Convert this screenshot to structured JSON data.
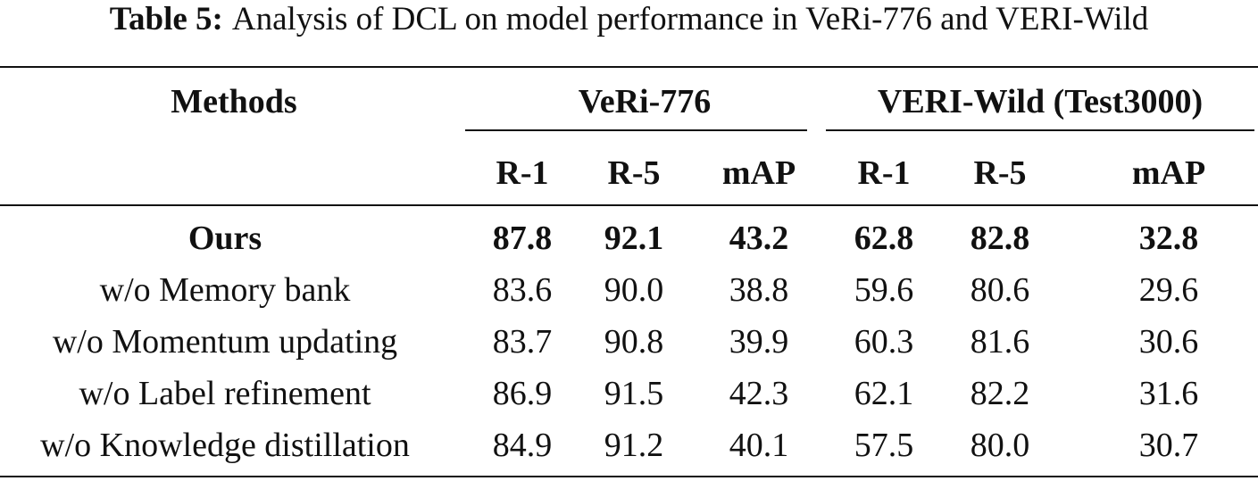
{
  "caption": {
    "label": "Table 5:",
    "text": "Analysis of DCL on model performance in VeRi-776 and VERI-Wild"
  },
  "table": {
    "header": {
      "methods": "Methods",
      "group1": "VeRi-776",
      "group2": "VERI-Wild (Test3000)",
      "sub": [
        "R-1",
        "R-5",
        "mAP",
        "R-1",
        "R-5",
        "mAP"
      ]
    },
    "rows": [
      {
        "method": "Ours",
        "values": [
          "87.8",
          "92.1",
          "43.2",
          "62.8",
          "82.8",
          "32.8"
        ],
        "bold": true
      },
      {
        "method": "w/o Memory bank",
        "values": [
          "83.6",
          "90.0",
          "38.8",
          "59.6",
          "80.6",
          "29.6"
        ],
        "bold": false
      },
      {
        "method": "w/o Momentum updating",
        "values": [
          "83.7",
          "90.8",
          "39.9",
          "60.3",
          "81.6",
          "30.6"
        ],
        "bold": false
      },
      {
        "method": "w/o Label refinement",
        "values": [
          "86.9",
          "91.5",
          "42.3",
          "62.1",
          "82.2",
          "31.6"
        ],
        "bold": false
      },
      {
        "method": "w/o Knowledge distillation",
        "values": [
          "84.9",
          "91.2",
          "40.1",
          "57.5",
          "80.0",
          "30.7"
        ],
        "bold": false
      }
    ]
  }
}
